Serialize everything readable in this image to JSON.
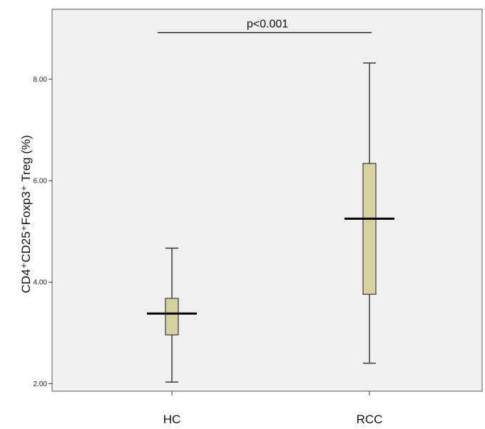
{
  "chart_data": {
    "type": "boxplot",
    "title": "",
    "xlabel": "",
    "ylabel": "CD4⁺CD25⁺Foxp3⁺ Treg (%)",
    "categories": [
      "HC",
      "RCC"
    ],
    "series": [
      {
        "category": "HC",
        "min": 2.03,
        "q1": 2.96,
        "median": 3.38,
        "q3": 3.68,
        "max": 4.67
      },
      {
        "category": "RCC",
        "min": 2.4,
        "q1": 3.76,
        "median": 5.25,
        "q3": 6.34,
        "max": 8.32
      }
    ],
    "y_ticks": [
      2.0,
      4.0,
      6.0,
      8.0
    ],
    "y_tick_labels": [
      "2.00",
      "4.00",
      "6.00",
      "8.00"
    ],
    "ylim": [
      1.85,
      9.38
    ],
    "grid": false,
    "annotations": [
      {
        "text": "p<0.001",
        "between": [
          "HC",
          "RCC"
        ],
        "y": 8.92
      }
    ],
    "colors": {
      "plot_background": "#f0f0f0",
      "box_fill": "#d6d2a0",
      "box_stroke": "#3a3a3a",
      "median": "#000000"
    }
  }
}
